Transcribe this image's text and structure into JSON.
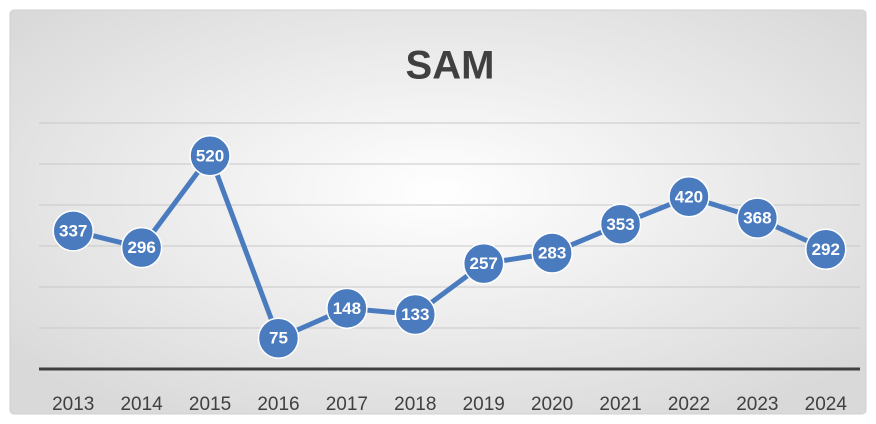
{
  "chart_data": {
    "type": "line",
    "title": "SAM",
    "categories": [
      "2013",
      "2014",
      "2015",
      "2016",
      "2017",
      "2018",
      "2019",
      "2020",
      "2021",
      "2022",
      "2023",
      "2024"
    ],
    "values": [
      337,
      296,
      520,
      75,
      148,
      133,
      257,
      283,
      353,
      420,
      368,
      292
    ],
    "color": "#4a7bbf",
    "ylim": [
      0,
      600
    ],
    "yticks": [
      0,
      100,
      200,
      300,
      400,
      500,
      600
    ],
    "grid": true
  }
}
